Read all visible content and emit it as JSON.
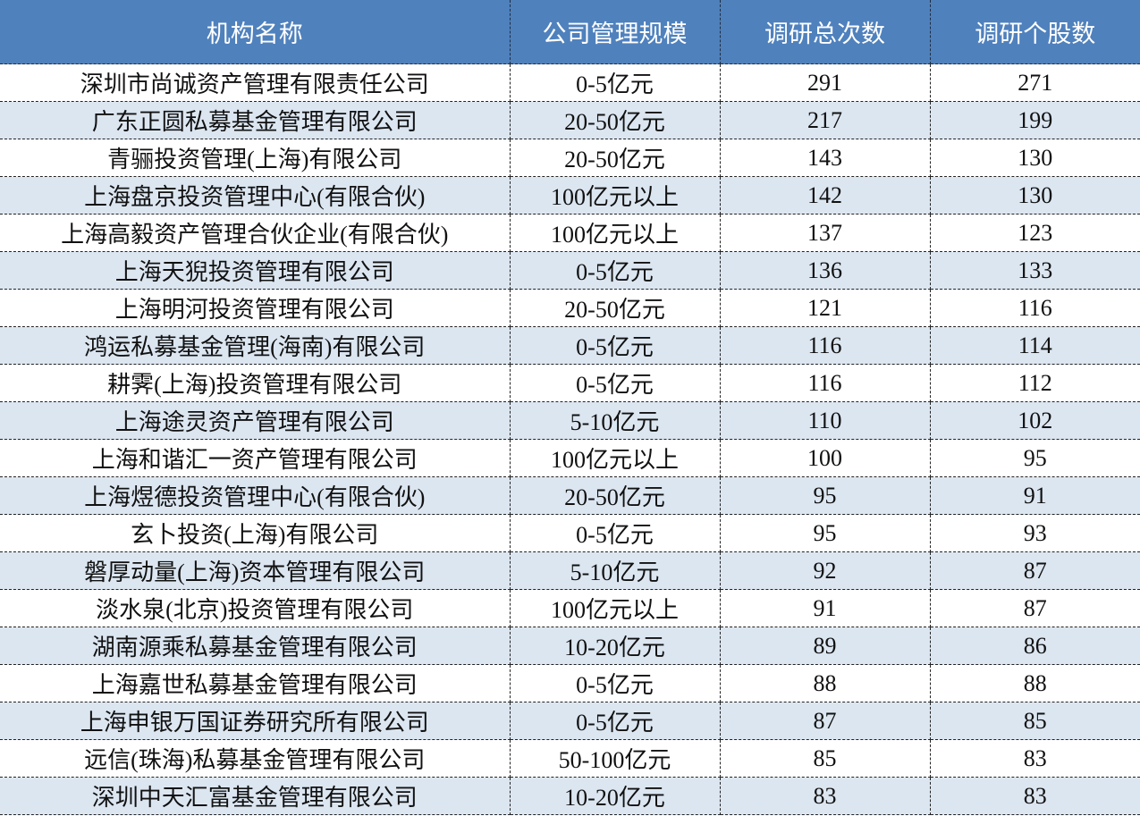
{
  "table": {
    "headers": [
      "机构名称",
      "公司管理规模",
      "调研总次数",
      "调研个股数"
    ],
    "rows": [
      [
        "深圳市尚诚资产管理有限责任公司",
        "0-5亿元",
        "291",
        "271"
      ],
      [
        "广东正圆私募基金管理有限公司",
        "20-50亿元",
        "217",
        "199"
      ],
      [
        "青骊投资管理(上海)有限公司",
        "20-50亿元",
        "143",
        "130"
      ],
      [
        "上海盘京投资管理中心(有限合伙)",
        "100亿元以上",
        "142",
        "130"
      ],
      [
        "上海高毅资产管理合伙企业(有限合伙)",
        "100亿元以上",
        "137",
        "123"
      ],
      [
        "上海天猊投资管理有限公司",
        "0-5亿元",
        "136",
        "133"
      ],
      [
        "上海明河投资管理有限公司",
        "20-50亿元",
        "121",
        "116"
      ],
      [
        "鸿运私募基金管理(海南)有限公司",
        "0-5亿元",
        "116",
        "114"
      ],
      [
        "耕霁(上海)投资管理有限公司",
        "0-5亿元",
        "116",
        "112"
      ],
      [
        "上海途灵资产管理有限公司",
        "5-10亿元",
        "110",
        "102"
      ],
      [
        "上海和谐汇一资产管理有限公司",
        "100亿元以上",
        "100",
        "95"
      ],
      [
        "上海煜德投资管理中心(有限合伙)",
        "20-50亿元",
        "95",
        "91"
      ],
      [
        "玄卜投资(上海)有限公司",
        "0-5亿元",
        "95",
        "93"
      ],
      [
        "磐厚动量(上海)资本管理有限公司",
        "5-10亿元",
        "92",
        "87"
      ],
      [
        "淡水泉(北京)投资管理有限公司",
        "100亿元以上",
        "91",
        "87"
      ],
      [
        "湖南源乘私募基金管理有限公司",
        "10-20亿元",
        "89",
        "86"
      ],
      [
        "上海嘉世私募基金管理有限公司",
        "0-5亿元",
        "88",
        "88"
      ],
      [
        "上海申银万国证券研究所有限公司",
        "0-5亿元",
        "87",
        "85"
      ],
      [
        "远信(珠海)私募基金管理有限公司",
        "50-100亿元",
        "85",
        "83"
      ],
      [
        "深圳中天汇富基金管理有限公司",
        "10-20亿元",
        "83",
        "83"
      ]
    ]
  },
  "colors": {
    "header_bg": "#4f81bd",
    "alt_row_bg": "#dce6f1"
  }
}
